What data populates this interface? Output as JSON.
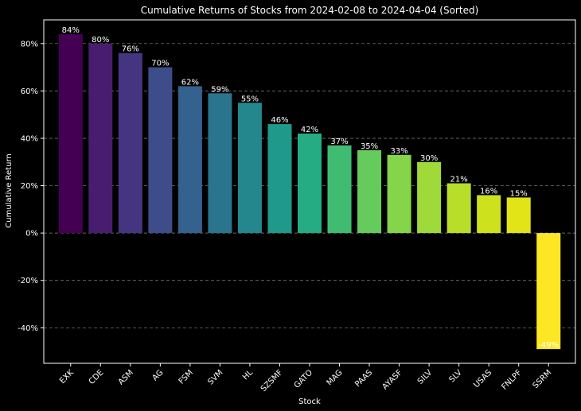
{
  "chart_data": {
    "type": "bar",
    "title": "Cumulative Returns of Stocks from 2024-02-08 to 2024-04-04 (Sorted)",
    "xlabel": "Stock",
    "ylabel": "Cumulative Return",
    "categories": [
      "EXK",
      "CDE",
      "ASM",
      "AG",
      "FSM",
      "SVM",
      "HL",
      "SZSMF",
      "GATO",
      "MAG",
      "PAAS",
      "AYASF",
      "SILV",
      "SLV",
      "USAS",
      "FNLPF",
      "SSRM"
    ],
    "values": [
      0.84,
      0.8,
      0.76,
      0.7,
      0.62,
      0.59,
      0.55,
      0.46,
      0.42,
      0.37,
      0.35,
      0.33,
      0.3,
      0.21,
      0.16,
      0.15,
      -0.49
    ],
    "value_labels": [
      "84%",
      "80%",
      "76%",
      "70%",
      "62%",
      "59%",
      "55%",
      "46%",
      "42%",
      "37%",
      "35%",
      "33%",
      "30%",
      "21%",
      "16%",
      "15%",
      "-49%"
    ],
    "colors": [
      "#440154",
      "#481d6f",
      "#453581",
      "#3d4d8a",
      "#34618d",
      "#2b748e",
      "#24878e",
      "#1f998a",
      "#25ac82",
      "#40bc72",
      "#66cb5d",
      "#85d54a",
      "#9fda3a",
      "#b8de29",
      "#cde11d",
      "#e2e418",
      "#fde725"
    ],
    "ylim": [
      -0.55,
      0.9
    ],
    "yticks": [
      -0.4,
      -0.2,
      0,
      0.2,
      0.4,
      0.6,
      0.8
    ],
    "ytick_labels": [
      "-40%",
      "-20%",
      "0%",
      "20%",
      "40%",
      "60%",
      "80%"
    ],
    "grid": "y-dashed",
    "background": "#000000"
  }
}
